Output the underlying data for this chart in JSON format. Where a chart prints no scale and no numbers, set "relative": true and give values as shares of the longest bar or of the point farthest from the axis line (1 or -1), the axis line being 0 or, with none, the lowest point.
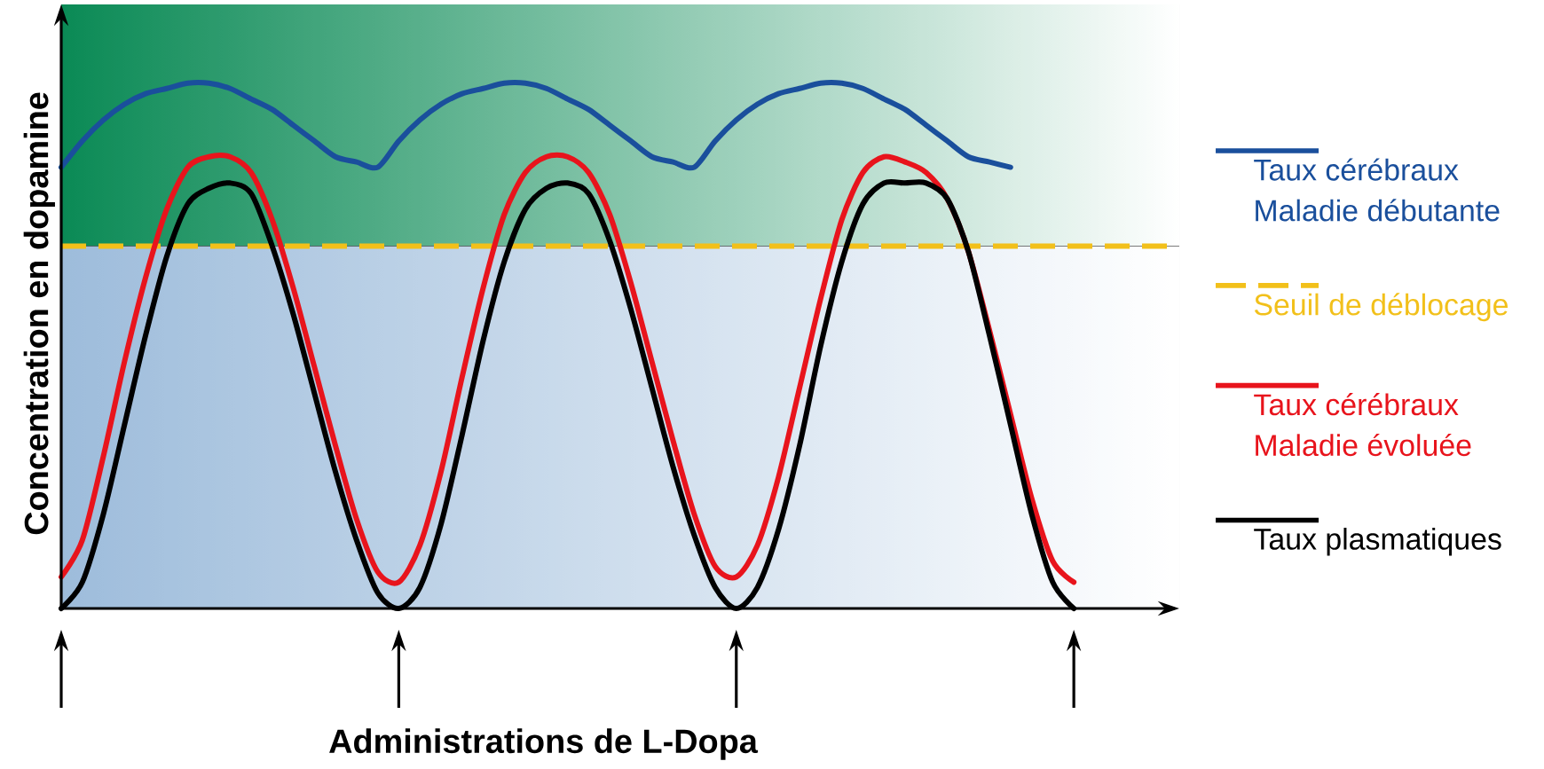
{
  "chart_data": {
    "type": "line",
    "relative": true,
    "xlabel": "Administrations de L-Dopa",
    "ylabel": "Concentration en dopamine",
    "categories": [
      null,
      null,
      null,
      null,
      null,
      null,
      null,
      null,
      null,
      null,
      null,
      null,
      null,
      null,
      null,
      null,
      null,
      null,
      null,
      null,
      null,
      null,
      null,
      null,
      null,
      null,
      null,
      null,
      null,
      null,
      null,
      null,
      null,
      null,
      null,
      null,
      null,
      null,
      null,
      null,
      null,
      null,
      null,
      null,
      null,
      null,
      null,
      null,
      null
    ],
    "series": [
      {
        "name": "Taux cérébraux Maladie débutante",
        "color": "#1a4f9c",
        "values": [
          0.84,
          0.89,
          0.93,
          0.96,
          0.98,
          0.99,
          1.0,
          1.0,
          0.99,
          0.97,
          0.95,
          0.92,
          0.89,
          0.86,
          0.85,
          0.84,
          0.89,
          0.93,
          0.96,
          0.98,
          0.99,
          1.0,
          1.0,
          0.99,
          0.97,
          0.95,
          0.92,
          0.89,
          0.86,
          0.85,
          0.84,
          0.89,
          0.93,
          0.96,
          0.98,
          0.99,
          1.0,
          1.0,
          0.99,
          0.97,
          0.95,
          0.92,
          0.89,
          0.86,
          0.85,
          0.84,
          null,
          null,
          null
        ]
      },
      {
        "name": "Taux cérébraux Maladie évoluée",
        "color": "#e8141c",
        "values": [
          0.06,
          0.13,
          0.29,
          0.47,
          0.63,
          0.76,
          0.84,
          0.86,
          0.86,
          0.83,
          0.74,
          0.61,
          0.46,
          0.31,
          0.17,
          0.07,
          0.05,
          0.12,
          0.26,
          0.44,
          0.61,
          0.75,
          0.83,
          0.86,
          0.86,
          0.83,
          0.75,
          0.62,
          0.47,
          0.32,
          0.18,
          0.08,
          0.06,
          0.12,
          0.25,
          0.42,
          0.59,
          0.74,
          0.83,
          0.86,
          0.85,
          0.83,
          0.78,
          0.68,
          0.53,
          0.37,
          0.21,
          0.09,
          0.05
        ]
      },
      {
        "name": "Taux plasmatiques",
        "color": "#000000",
        "values": [
          0,
          0.05,
          0.18,
          0.35,
          0.52,
          0.67,
          0.77,
          0.8,
          0.81,
          0.79,
          0.69,
          0.56,
          0.41,
          0.26,
          0.13,
          0.03,
          0,
          0.04,
          0.16,
          0.33,
          0.51,
          0.66,
          0.76,
          0.8,
          0.81,
          0.79,
          0.7,
          0.57,
          0.42,
          0.27,
          0.14,
          0.04,
          0,
          0.04,
          0.15,
          0.31,
          0.5,
          0.66,
          0.77,
          0.81,
          0.81,
          0.81,
          0.78,
          0.68,
          0.52,
          0.35,
          0.18,
          0.05,
          0
        ]
      }
    ],
    "ref_lines": [
      {
        "axis": "y",
        "value": 0.69,
        "label": "Seuil de déblocage",
        "color": "#f2c01a",
        "line_style": "dashed"
      }
    ],
    "bands": [
      {
        "axis": "y",
        "from": 0.69,
        "to": 1.15,
        "color": "#0a8a55"
      },
      {
        "axis": "y",
        "from": 0,
        "to": 0.69,
        "color": "#9dbcdb"
      }
    ],
    "legend": "right",
    "marker": "none",
    "line_style": "solid"
  }
}
